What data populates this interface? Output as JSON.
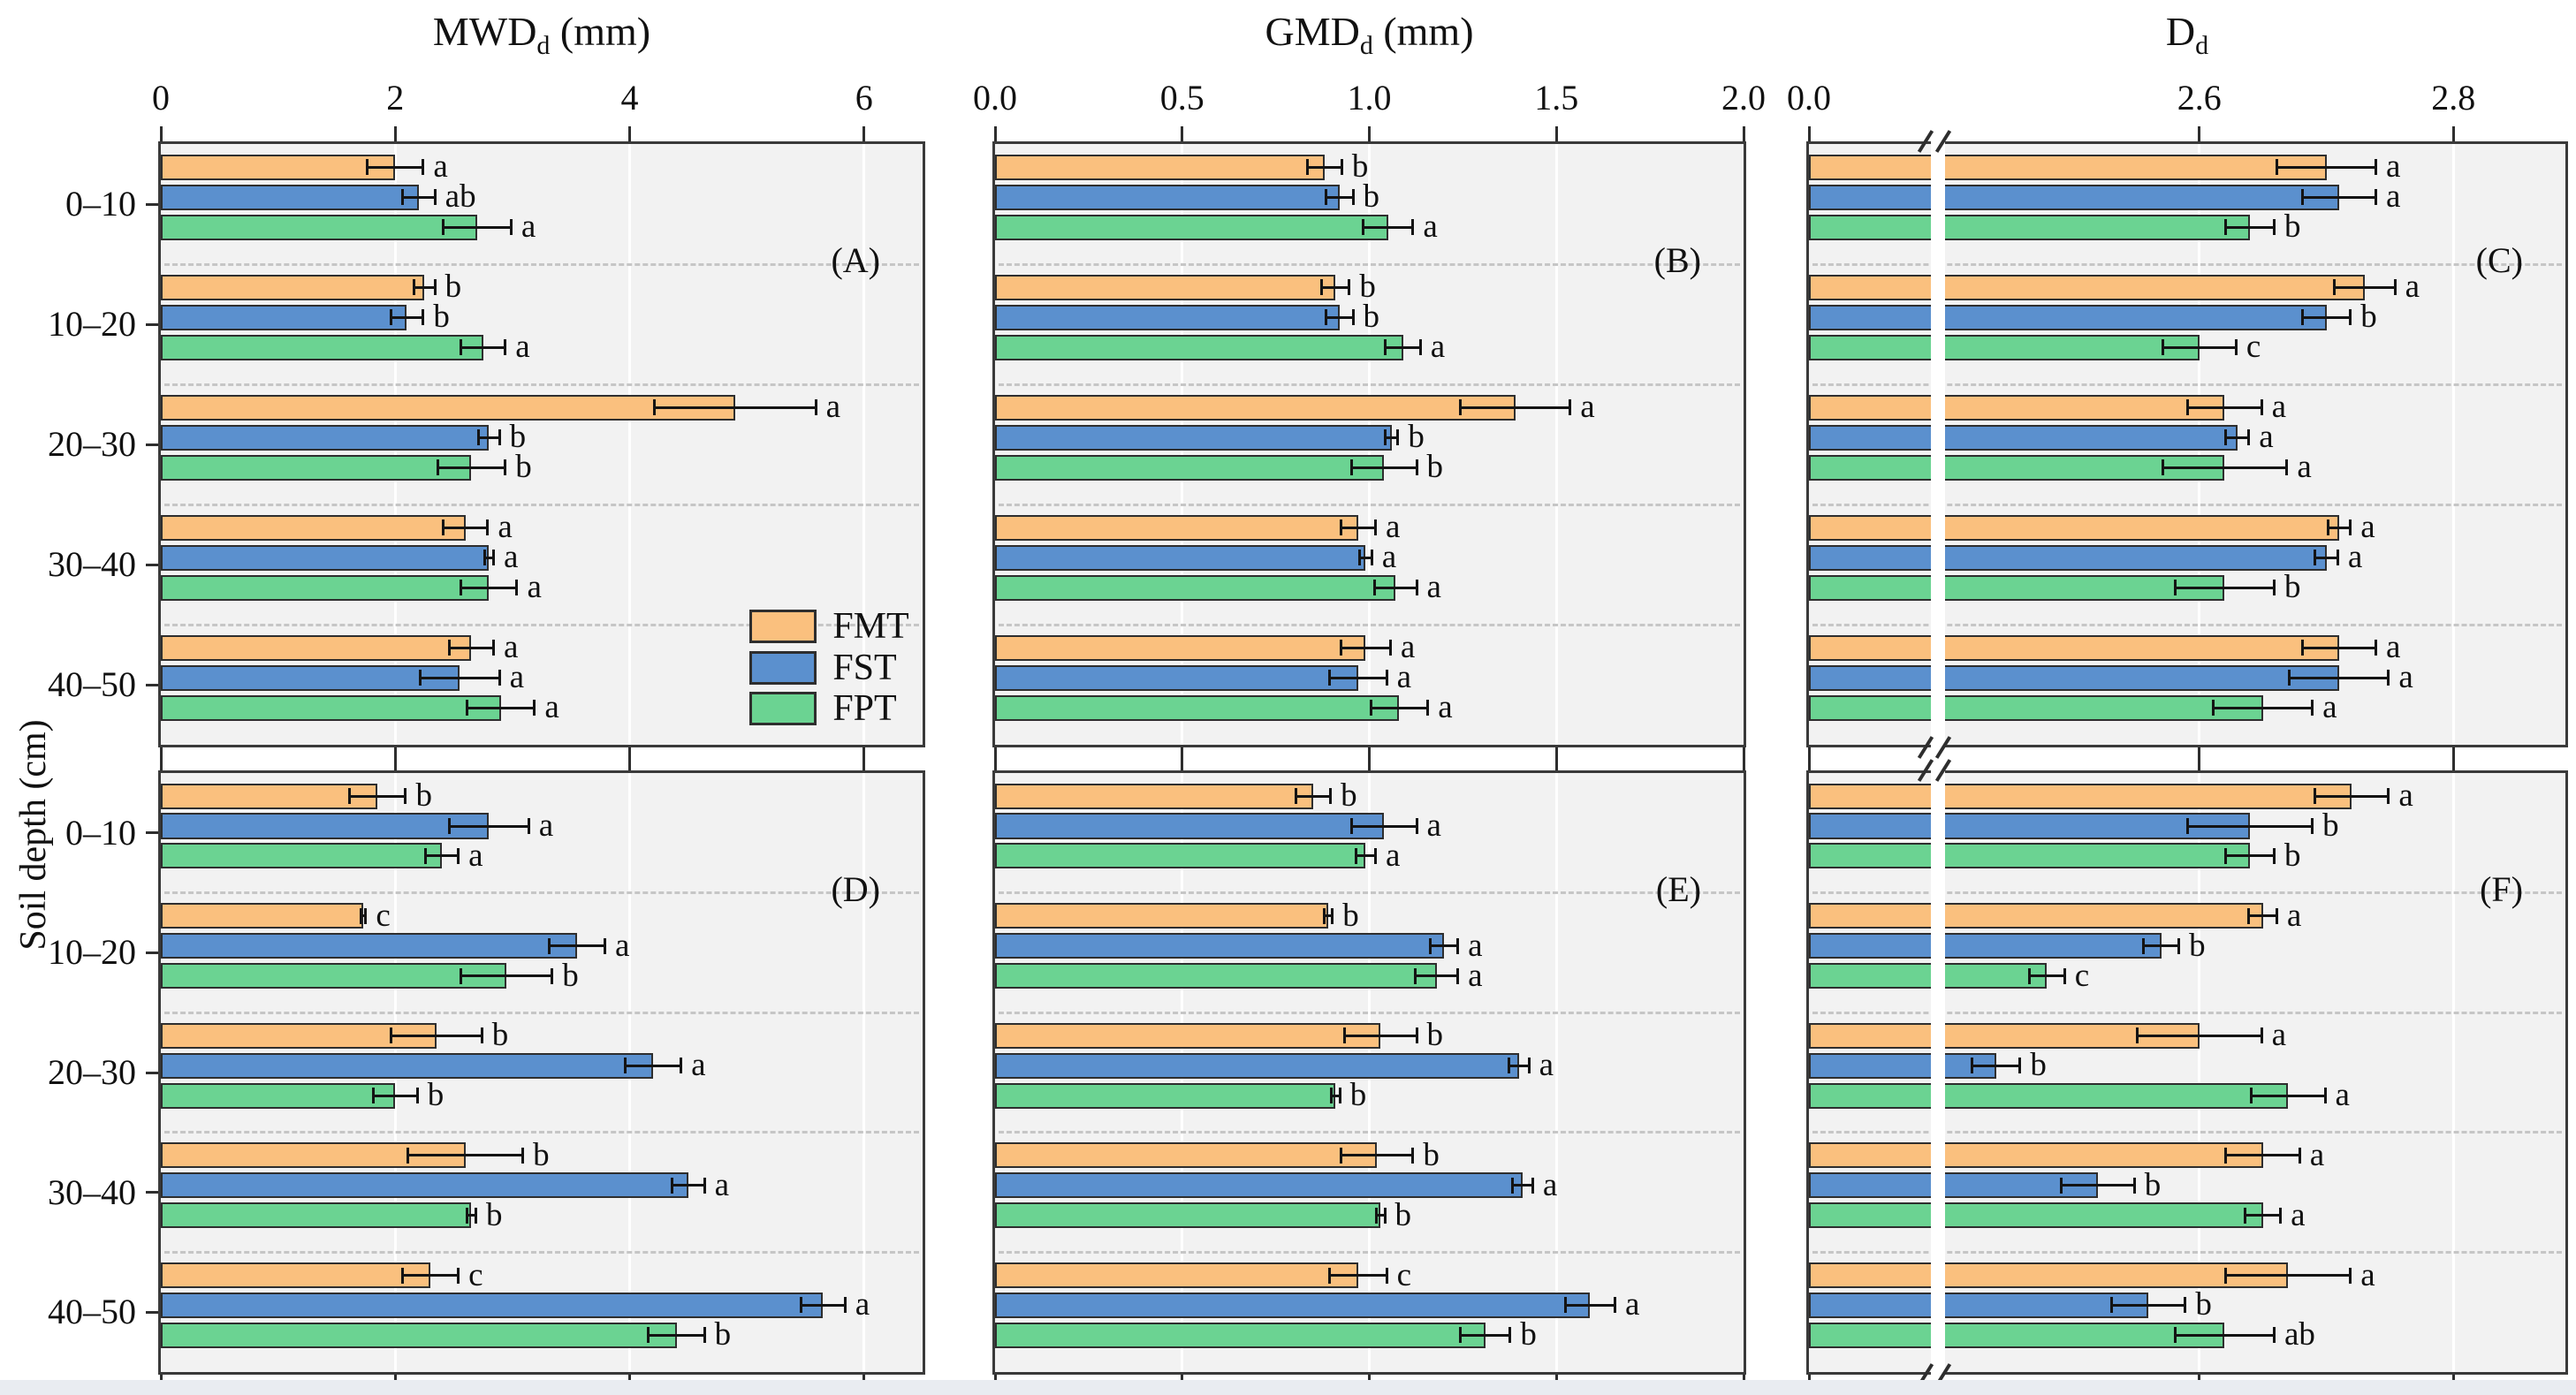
{
  "figure": {
    "y_axis_label": "Soil depth (cm)",
    "depth_categories": [
      "0–10",
      "10–20",
      "20–30",
      "30–40",
      "40–50"
    ],
    "series_legend": [
      {
        "label": "FMT",
        "color": "#FAC07E"
      },
      {
        "label": "FST",
        "color": "#5B90CE"
      },
      {
        "label": "FPT",
        "color": "#6BD392"
      }
    ],
    "colors": {
      "bar_border": "#2e2e2e",
      "plot_bg": "#f2f2f2",
      "panel_border": "#3a3a3a",
      "gridline": "#ffffff",
      "separator": "#c6c6c6",
      "error_bar": "#141414",
      "footer_strip": "#e9ecf1"
    }
  },
  "chart_data": [
    {
      "id": "(A)",
      "type": "bar",
      "orientation": "horizontal",
      "row": 0,
      "col": 0,
      "title": {
        "main": "MWD",
        "sub": "d",
        "rest": " (mm)"
      },
      "axis": {
        "kind": "linear",
        "max": 6.5,
        "ticks": [
          {
            "v": 0,
            "label": "0"
          },
          {
            "v": 2,
            "label": "2"
          },
          {
            "v": 4,
            "label": "4"
          },
          {
            "v": 6,
            "label": "6"
          }
        ],
        "gridlines": [
          2,
          4,
          6
        ]
      },
      "categories": [
        "0–10",
        "10–20",
        "20–30",
        "30–40",
        "40–50"
      ],
      "series": [
        "FMT",
        "FST",
        "FPT"
      ],
      "groups": [
        [
          {
            "v": 2.0,
            "e": 0.25,
            "l": "a"
          },
          {
            "v": 2.2,
            "e": 0.15,
            "l": "ab"
          },
          {
            "v": 2.7,
            "e": 0.3,
            "l": "a"
          }
        ],
        [
          {
            "v": 2.25,
            "e": 0.1,
            "l": "b"
          },
          {
            "v": 2.1,
            "e": 0.15,
            "l": "b"
          },
          {
            "v": 2.75,
            "e": 0.2,
            "l": "a"
          }
        ],
        [
          {
            "v": 4.9,
            "e": 0.7,
            "l": "a"
          },
          {
            "v": 2.8,
            "e": 0.1,
            "l": "b"
          },
          {
            "v": 2.65,
            "e": 0.3,
            "l": "b"
          }
        ],
        [
          {
            "v": 2.6,
            "e": 0.2,
            "l": "a"
          },
          {
            "v": 2.8,
            "e": 0.05,
            "l": "a"
          },
          {
            "v": 2.8,
            "e": 0.25,
            "l": "a"
          }
        ],
        [
          {
            "v": 2.65,
            "e": 0.2,
            "l": "a"
          },
          {
            "v": 2.55,
            "e": 0.35,
            "l": "a"
          },
          {
            "v": 2.9,
            "e": 0.3,
            "l": "a"
          }
        ]
      ],
      "has_legend": true
    },
    {
      "id": "(B)",
      "type": "bar",
      "orientation": "horizontal",
      "row": 0,
      "col": 1,
      "title": {
        "main": "GMD",
        "sub": "d",
        "rest": " (mm)"
      },
      "axis": {
        "kind": "linear",
        "max": 2.0,
        "ticks": [
          {
            "v": 0,
            "label": "0.0"
          },
          {
            "v": 0.5,
            "label": "0.5"
          },
          {
            "v": 1.0,
            "label": "1.0"
          },
          {
            "v": 1.5,
            "label": "1.5"
          },
          {
            "v": 2.0,
            "label": "2.0"
          }
        ],
        "gridlines": [
          0.5,
          1.0,
          1.5
        ]
      },
      "categories": [
        "0–10",
        "10–20",
        "20–30",
        "30–40",
        "40–50"
      ],
      "series": [
        "FMT",
        "FST",
        "FPT"
      ],
      "groups": [
        [
          {
            "v": 0.88,
            "e": 0.05,
            "l": "b"
          },
          {
            "v": 0.92,
            "e": 0.04,
            "l": "b"
          },
          {
            "v": 1.05,
            "e": 0.07,
            "l": "a"
          }
        ],
        [
          {
            "v": 0.91,
            "e": 0.04,
            "l": "b"
          },
          {
            "v": 0.92,
            "e": 0.04,
            "l": "b"
          },
          {
            "v": 1.09,
            "e": 0.05,
            "l": "a"
          }
        ],
        [
          {
            "v": 1.39,
            "e": 0.15,
            "l": "a"
          },
          {
            "v": 1.06,
            "e": 0.02,
            "l": "b"
          },
          {
            "v": 1.04,
            "e": 0.09,
            "l": "b"
          }
        ],
        [
          {
            "v": 0.97,
            "e": 0.05,
            "l": "a"
          },
          {
            "v": 0.99,
            "e": 0.02,
            "l": "a"
          },
          {
            "v": 1.07,
            "e": 0.06,
            "l": "a"
          }
        ],
        [
          {
            "v": 0.99,
            "e": 0.07,
            "l": "a"
          },
          {
            "v": 0.97,
            "e": 0.08,
            "l": "a"
          },
          {
            "v": 1.08,
            "e": 0.08,
            "l": "a"
          }
        ]
      ],
      "has_legend": false
    },
    {
      "id": "(C)",
      "type": "bar",
      "orientation": "horizontal",
      "row": 0,
      "col": 2,
      "title": {
        "main": "D",
        "sub": "d",
        "rest": ""
      },
      "axis": {
        "kind": "broken",
        "pre_max": 2.4,
        "pre_frac": 0.161,
        "band_frac": 0.019,
        "slope": 1.68,
        "ticks": [
          {
            "v": 0,
            "label": "0.0"
          },
          {
            "v": 2.6,
            "label": "2.6"
          },
          {
            "v": 2.8,
            "label": "2.8"
          }
        ],
        "gridlines": [
          2.6,
          2.8
        ]
      },
      "categories": [
        "0–10",
        "10–20",
        "20–30",
        "30–40",
        "40–50"
      ],
      "series": [
        "FMT",
        "FST",
        "FPT"
      ],
      "groups": [
        [
          {
            "v": 2.7,
            "e": 0.04,
            "l": "a"
          },
          {
            "v": 2.71,
            "e": 0.03,
            "l": "a"
          },
          {
            "v": 2.64,
            "e": 0.02,
            "l": "b"
          }
        ],
        [
          {
            "v": 2.73,
            "e": 0.025,
            "l": "a"
          },
          {
            "v": 2.7,
            "e": 0.02,
            "l": "b"
          },
          {
            "v": 2.6,
            "e": 0.03,
            "l": "c"
          }
        ],
        [
          {
            "v": 2.62,
            "e": 0.03,
            "l": "a"
          },
          {
            "v": 2.63,
            "e": 0.01,
            "l": "a"
          },
          {
            "v": 2.62,
            "e": 0.05,
            "l": "a"
          }
        ],
        [
          {
            "v": 2.71,
            "e": 0.01,
            "l": "a"
          },
          {
            "v": 2.7,
            "e": 0.01,
            "l": "a"
          },
          {
            "v": 2.62,
            "e": 0.04,
            "l": "b"
          }
        ],
        [
          {
            "v": 2.71,
            "e": 0.03,
            "l": "a"
          },
          {
            "v": 2.71,
            "e": 0.04,
            "l": "a"
          },
          {
            "v": 2.65,
            "e": 0.04,
            "l": "a"
          }
        ]
      ],
      "has_legend": false
    },
    {
      "id": "(D)",
      "type": "bar",
      "orientation": "horizontal",
      "row": 1,
      "col": 0,
      "title": null,
      "axis": {
        "kind": "linear",
        "max": 6.5,
        "ticks": [
          {
            "v": 0,
            "label": ""
          },
          {
            "v": 2,
            "label": ""
          },
          {
            "v": 4,
            "label": ""
          },
          {
            "v": 6,
            "label": ""
          }
        ],
        "gridlines": [
          2,
          4,
          6
        ]
      },
      "categories": [
        "0–10",
        "10–20",
        "20–30",
        "30–40",
        "40–50"
      ],
      "series": [
        "FMT",
        "FST",
        "FPT"
      ],
      "groups": [
        [
          {
            "v": 1.85,
            "e": 0.25,
            "l": "b"
          },
          {
            "v": 2.8,
            "e": 0.35,
            "l": "a"
          },
          {
            "v": 2.4,
            "e": 0.15,
            "l": "a"
          }
        ],
        [
          {
            "v": 1.73,
            "e": 0.03,
            "l": "c"
          },
          {
            "v": 3.55,
            "e": 0.25,
            "l": "a"
          },
          {
            "v": 2.95,
            "e": 0.4,
            "l": "b"
          }
        ],
        [
          {
            "v": 2.35,
            "e": 0.4,
            "l": "b"
          },
          {
            "v": 4.2,
            "e": 0.25,
            "l": "a"
          },
          {
            "v": 2.0,
            "e": 0.2,
            "l": "b"
          }
        ],
        [
          {
            "v": 2.6,
            "e": 0.5,
            "l": "b"
          },
          {
            "v": 4.5,
            "e": 0.15,
            "l": "a"
          },
          {
            "v": 2.65,
            "e": 0.05,
            "l": "b"
          }
        ],
        [
          {
            "v": 2.3,
            "e": 0.25,
            "l": "c"
          },
          {
            "v": 5.65,
            "e": 0.2,
            "l": "a"
          },
          {
            "v": 4.4,
            "e": 0.25,
            "l": "b"
          }
        ]
      ],
      "has_legend": false
    },
    {
      "id": "(E)",
      "type": "bar",
      "orientation": "horizontal",
      "row": 1,
      "col": 1,
      "title": null,
      "axis": {
        "kind": "linear",
        "max": 2.0,
        "ticks": [
          {
            "v": 0,
            "label": ""
          },
          {
            "v": 0.5,
            "label": ""
          },
          {
            "v": 1.0,
            "label": ""
          },
          {
            "v": 1.5,
            "label": ""
          },
          {
            "v": 2.0,
            "label": ""
          }
        ],
        "gridlines": [
          0.5,
          1.0,
          1.5
        ]
      },
      "categories": [
        "0–10",
        "10–20",
        "20–30",
        "30–40",
        "40–50"
      ],
      "series": [
        "FMT",
        "FST",
        "FPT"
      ],
      "groups": [
        [
          {
            "v": 0.85,
            "e": 0.05,
            "l": "b"
          },
          {
            "v": 1.04,
            "e": 0.09,
            "l": "a"
          },
          {
            "v": 0.99,
            "e": 0.03,
            "l": "a"
          }
        ],
        [
          {
            "v": 0.89,
            "e": 0.015,
            "l": "b"
          },
          {
            "v": 1.2,
            "e": 0.04,
            "l": "a"
          },
          {
            "v": 1.18,
            "e": 0.06,
            "l": "a"
          }
        ],
        [
          {
            "v": 1.03,
            "e": 0.1,
            "l": "b"
          },
          {
            "v": 1.4,
            "e": 0.03,
            "l": "a"
          },
          {
            "v": 0.91,
            "e": 0.015,
            "l": "b"
          }
        ],
        [
          {
            "v": 1.02,
            "e": 0.1,
            "l": "b"
          },
          {
            "v": 1.41,
            "e": 0.03,
            "l": "a"
          },
          {
            "v": 1.03,
            "e": 0.015,
            "l": "b"
          }
        ],
        [
          {
            "v": 0.97,
            "e": 0.08,
            "l": "c"
          },
          {
            "v": 1.59,
            "e": 0.07,
            "l": "a"
          },
          {
            "v": 1.31,
            "e": 0.07,
            "l": "b"
          }
        ]
      ],
      "has_legend": false
    },
    {
      "id": "(F)",
      "type": "bar",
      "orientation": "horizontal",
      "row": 1,
      "col": 2,
      "title": null,
      "axis": {
        "kind": "broken",
        "pre_max": 2.4,
        "pre_frac": 0.161,
        "band_frac": 0.019,
        "slope": 1.68,
        "ticks": [
          {
            "v": 0,
            "label": ""
          },
          {
            "v": 2.6,
            "label": ""
          },
          {
            "v": 2.8,
            "label": ""
          }
        ],
        "gridlines": [
          2.6,
          2.8
        ]
      },
      "categories": [
        "0–10",
        "10–20",
        "20–30",
        "30–40",
        "40–50"
      ],
      "series": [
        "FMT",
        "FST",
        "FPT"
      ],
      "groups": [
        [
          {
            "v": 2.72,
            "e": 0.03,
            "l": "a"
          },
          {
            "v": 2.64,
            "e": 0.05,
            "l": "b"
          },
          {
            "v": 2.64,
            "e": 0.02,
            "l": "b"
          }
        ],
        [
          {
            "v": 2.65,
            "e": 0.012,
            "l": "a"
          },
          {
            "v": 2.57,
            "e": 0.015,
            "l": "b"
          },
          {
            "v": 2.48,
            "e": 0.015,
            "l": "c"
          }
        ],
        [
          {
            "v": 2.6,
            "e": 0.05,
            "l": "a"
          },
          {
            "v": 2.44,
            "e": 0.02,
            "l": "b"
          },
          {
            "v": 2.67,
            "e": 0.03,
            "l": "a"
          }
        ],
        [
          {
            "v": 2.65,
            "e": 0.03,
            "l": "a"
          },
          {
            "v": 2.52,
            "e": 0.03,
            "l": "b"
          },
          {
            "v": 2.65,
            "e": 0.015,
            "l": "a"
          }
        ],
        [
          {
            "v": 2.67,
            "e": 0.05,
            "l": "a"
          },
          {
            "v": 2.56,
            "e": 0.03,
            "l": "b"
          },
          {
            "v": 2.62,
            "e": 0.04,
            "l": "ab"
          }
        ]
      ],
      "has_legend": false
    }
  ]
}
